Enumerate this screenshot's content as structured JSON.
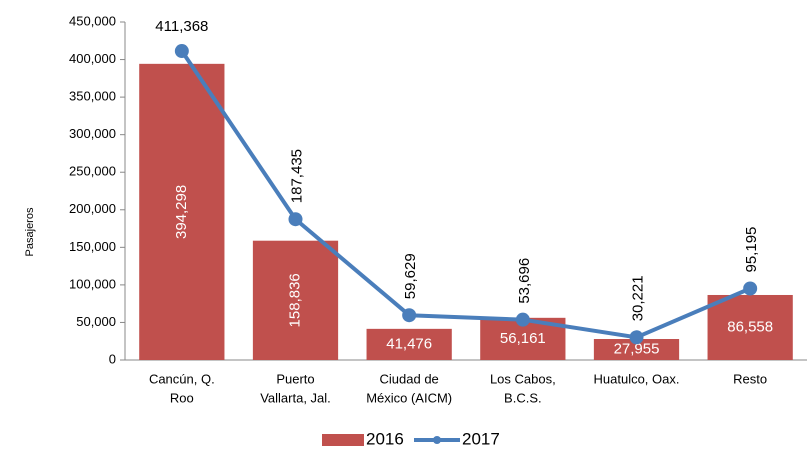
{
  "chart_data": {
    "type": "bar-line",
    "y_label": "Pasajeros",
    "categories": [
      [
        "Cancún, Q.",
        "Roo"
      ],
      [
        "Puerto",
        "Vallarta, Jal."
      ],
      [
        "Ciudad de",
        "México (AICM)"
      ],
      [
        "Los Cabos,",
        "B.C.S."
      ],
      [
        "Huatulco, Oax."
      ],
      [
        "Resto"
      ]
    ],
    "series": [
      {
        "name": "2016",
        "type": "bar",
        "color": "#c0504d",
        "values": [
          394298,
          158836,
          41476,
          56161,
          27955,
          86558
        ],
        "value_labels": [
          "394,298",
          "158,836",
          "41,476",
          "56,161",
          "27,955",
          "86,558"
        ]
      },
      {
        "name": "2017",
        "type": "line",
        "color": "#4a7ebb",
        "values": [
          411368,
          187435,
          59629,
          53696,
          30221,
          95195
        ],
        "value_labels": [
          "411,368",
          "187,435",
          "59,629",
          "53,696",
          "30,221",
          "95,195"
        ]
      }
    ],
    "ylim": [
      0,
      450000
    ],
    "yticks": [
      0,
      {
        "value": 50000,
        "label": "50,000"
      },
      {
        "value": 100000,
        "label": "100,000"
      },
      {
        "value": 150000,
        "label": "150,000"
      },
      {
        "value": 200000,
        "label": "200,000"
      },
      {
        "value": 250000,
        "label": "250,000"
      },
      {
        "value": 300000,
        "label": "300,000"
      },
      {
        "value": 350000,
        "label": "350,000"
      },
      {
        "value": 400000,
        "label": "400,000"
      },
      {
        "value": 450000,
        "label": "450,000"
      }
    ],
    "legend": "bottom"
  }
}
